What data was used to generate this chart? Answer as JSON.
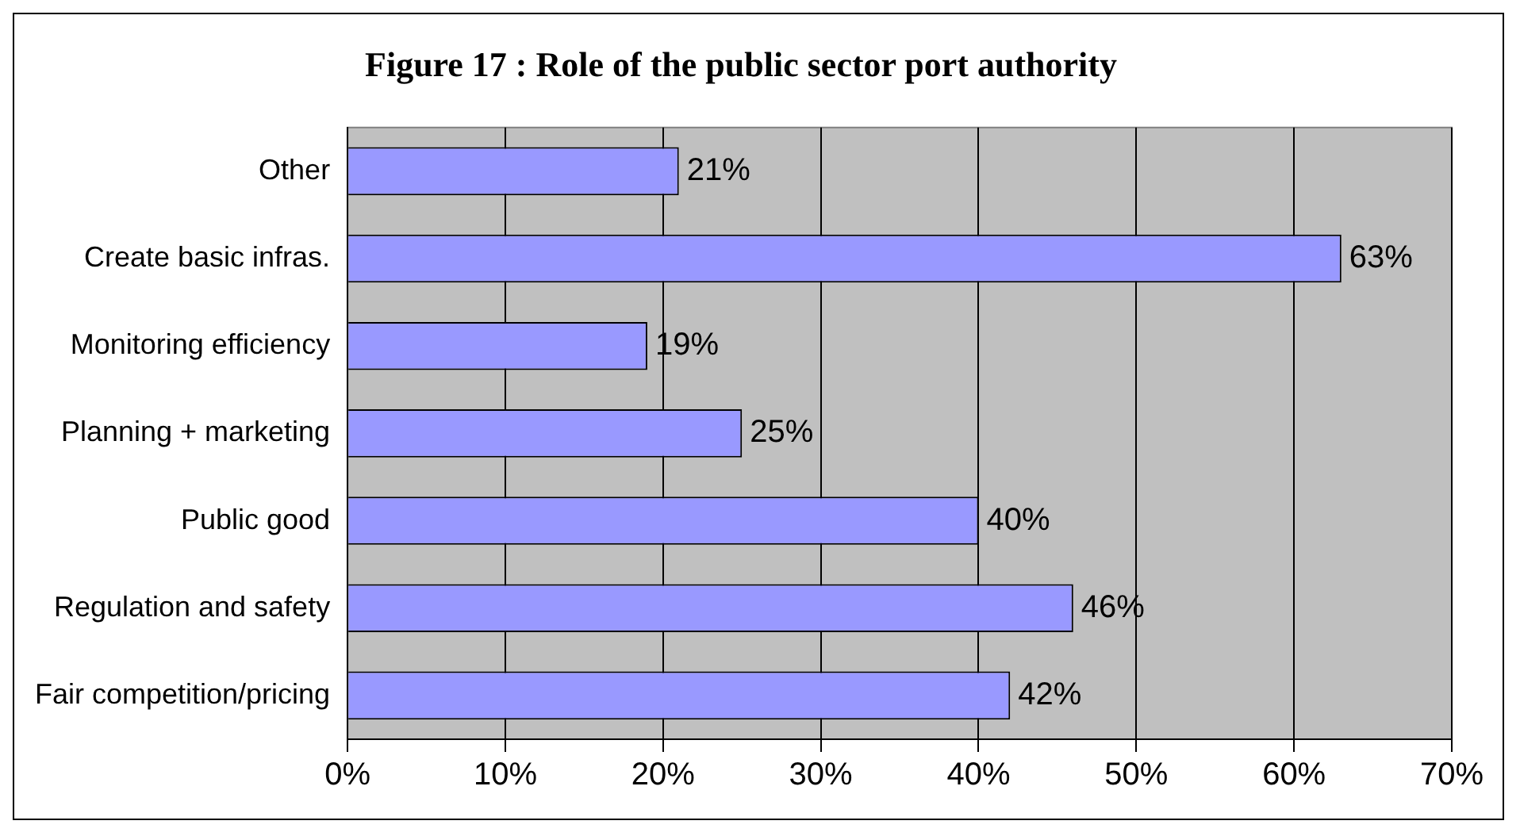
{
  "chart_data": {
    "type": "bar",
    "orientation": "horizontal",
    "title": "Figure 17 : Role of the public sector port authority",
    "categories": [
      "Other",
      "Create basic infras.",
      "Monitoring efficiency",
      "Planning + marketing",
      "Public good",
      "Regulation and safety",
      "Fair competition/pricing"
    ],
    "values": [
      21,
      63,
      19,
      25,
      40,
      46,
      42
    ],
    "value_labels": [
      "21%",
      "63%",
      "19%",
      "25%",
      "40%",
      "46%",
      "42%"
    ],
    "color": "#9999ff",
    "xlim": [
      0,
      70
    ],
    "xticks": [
      {
        "value": 0,
        "label": "0%"
      },
      {
        "value": 10,
        "label": "10%"
      },
      {
        "value": 20,
        "label": "20%"
      },
      {
        "value": 30,
        "label": "30%"
      },
      {
        "value": 40,
        "label": "40%"
      },
      {
        "value": 50,
        "label": "50%"
      },
      {
        "value": 60,
        "label": "60%"
      },
      {
        "value": 70,
        "label": "70%"
      }
    ],
    "grid": "x",
    "legend": false
  }
}
